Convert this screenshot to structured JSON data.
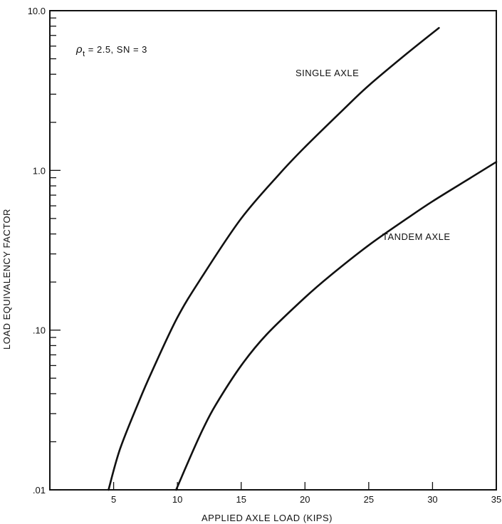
{
  "chart_data": {
    "type": "line",
    "xlabel": "APPLIED AXLE LOAD (KIPS)",
    "ylabel": "LOAD EQUIVALENCY FACTOR",
    "xlim": [
      0,
      35
    ],
    "ylim": [
      0.01,
      10
    ],
    "yscale": "log",
    "x_ticks": [
      5,
      10,
      15,
      20,
      25,
      30,
      35
    ],
    "x_tick_labels": [
      "5",
      "10",
      "15",
      "20",
      "25",
      "30",
      "35"
    ],
    "y_ticks": [
      0.01,
      0.1,
      1,
      10
    ],
    "y_tick_labels": [
      ".01",
      ".10",
      "1.0",
      "10.0"
    ],
    "annotation": {
      "symbol": "ρ",
      "subscript": "t",
      "rest": " = 2.5, SN = 3"
    },
    "series": [
      {
        "name": "SINGLE AXLE",
        "x": [
          4.6,
          5.5,
          7,
          8,
          10,
          12,
          15,
          18,
          20,
          23,
          25,
          28,
          30.5
        ],
        "y": [
          0.01,
          0.018,
          0.036,
          0.055,
          0.12,
          0.22,
          0.5,
          0.95,
          1.4,
          2.4,
          3.4,
          5.4,
          7.8
        ]
      },
      {
        "name": "TANDEM AXLE",
        "x": [
          9.9,
          11,
          12,
          13,
          15,
          17,
          20,
          22,
          25,
          28,
          30,
          33,
          35
        ],
        "y": [
          0.01,
          0.016,
          0.024,
          0.034,
          0.06,
          0.094,
          0.16,
          0.22,
          0.34,
          0.5,
          0.64,
          0.9,
          1.13
        ]
      }
    ]
  }
}
